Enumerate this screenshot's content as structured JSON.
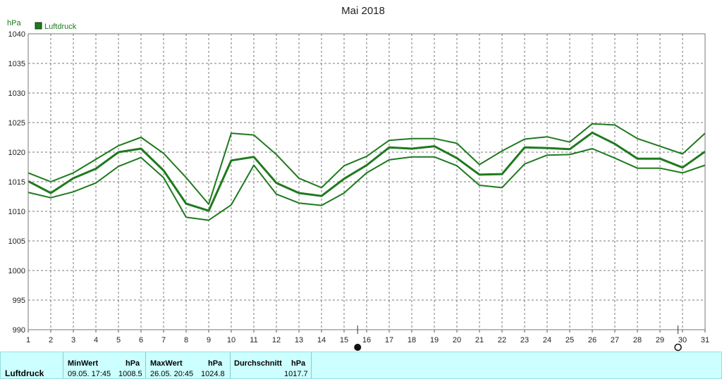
{
  "chart_data": {
    "type": "line",
    "title": "Mai 2018",
    "ylabel": "hPa",
    "ylim": [
      990,
      1040
    ],
    "yticks": [
      990,
      995,
      1000,
      1005,
      1010,
      1015,
      1020,
      1025,
      1030,
      1035,
      1040
    ],
    "xlim": [
      1,
      31
    ],
    "x": [
      1,
      2,
      3,
      4,
      5,
      6,
      7,
      8,
      9,
      10,
      11,
      12,
      13,
      14,
      15,
      16,
      17,
      18,
      19,
      20,
      21,
      22,
      23,
      24,
      25,
      26,
      27,
      28,
      29,
      30,
      31
    ],
    "grid": true,
    "legend": {
      "position": "top-left",
      "entries": [
        "Luftdruck"
      ]
    },
    "series": [
      {
        "name": "Luftdruck",
        "role": "max",
        "color": "#1e7a1e",
        "values": [
          1016.5,
          1015.0,
          1016.5,
          1018.8,
          1021.1,
          1022.5,
          1019.8,
          1015.7,
          1011.2,
          1023.2,
          1022.9,
          1019.6,
          1015.6,
          1014.0,
          1017.7,
          1019.3,
          1022.0,
          1022.3,
          1022.3,
          1021.5,
          1017.9,
          1020.2,
          1022.2,
          1022.6,
          1021.7,
          1024.8,
          1024.6,
          1022.3,
          1021.0,
          1019.7,
          1023.2
        ]
      },
      {
        "name": "Luftdruck",
        "role": "mean",
        "color": "#1e7a1e",
        "values": [
          1015.1,
          1013.1,
          1015.6,
          1017.2,
          1020.0,
          1020.6,
          1016.9,
          1011.3,
          1010.1,
          1018.6,
          1019.2,
          1014.8,
          1013.1,
          1012.6,
          1015.5,
          1017.8,
          1020.8,
          1020.6,
          1021.0,
          1019.0,
          1016.2,
          1016.3,
          1020.8,
          1020.7,
          1020.5,
          1023.3,
          1021.4,
          1018.9,
          1018.9,
          1017.4,
          1020.1
        ]
      },
      {
        "name": "Luftdruck",
        "role": "min",
        "color": "#1e7a1e",
        "values": [
          1013.2,
          1012.3,
          1013.3,
          1014.8,
          1017.6,
          1019.1,
          1015.7,
          1009.0,
          1008.5,
          1011.1,
          1017.8,
          1012.9,
          1011.4,
          1011.0,
          1013.1,
          1016.5,
          1018.7,
          1019.2,
          1019.2,
          1017.7,
          1014.4,
          1014.0,
          1018.0,
          1019.5,
          1019.6,
          1020.6,
          1019.0,
          1017.3,
          1017.3,
          1016.5,
          1017.8
        ]
      }
    ],
    "markers": [
      {
        "x": 15.6,
        "type": "filled-circle"
      },
      {
        "x": 29.8,
        "type": "open-circle"
      }
    ]
  },
  "stats": {
    "row_label": "Luftdruck",
    "min_header": "MinWert",
    "min_unit": "hPa",
    "min_time": "09.05.  17:45",
    "min_value": "1008.5",
    "max_header": "MaxWert",
    "max_unit": "hPa",
    "max_time": "26.05.  20:45",
    "max_value": "1024.8",
    "avg_header": "Durchschnitt",
    "avg_unit": "hPa",
    "avg_value": "1017.7"
  },
  "colors": {
    "series": "#1e7a1e",
    "panel": "#ccffff"
  }
}
